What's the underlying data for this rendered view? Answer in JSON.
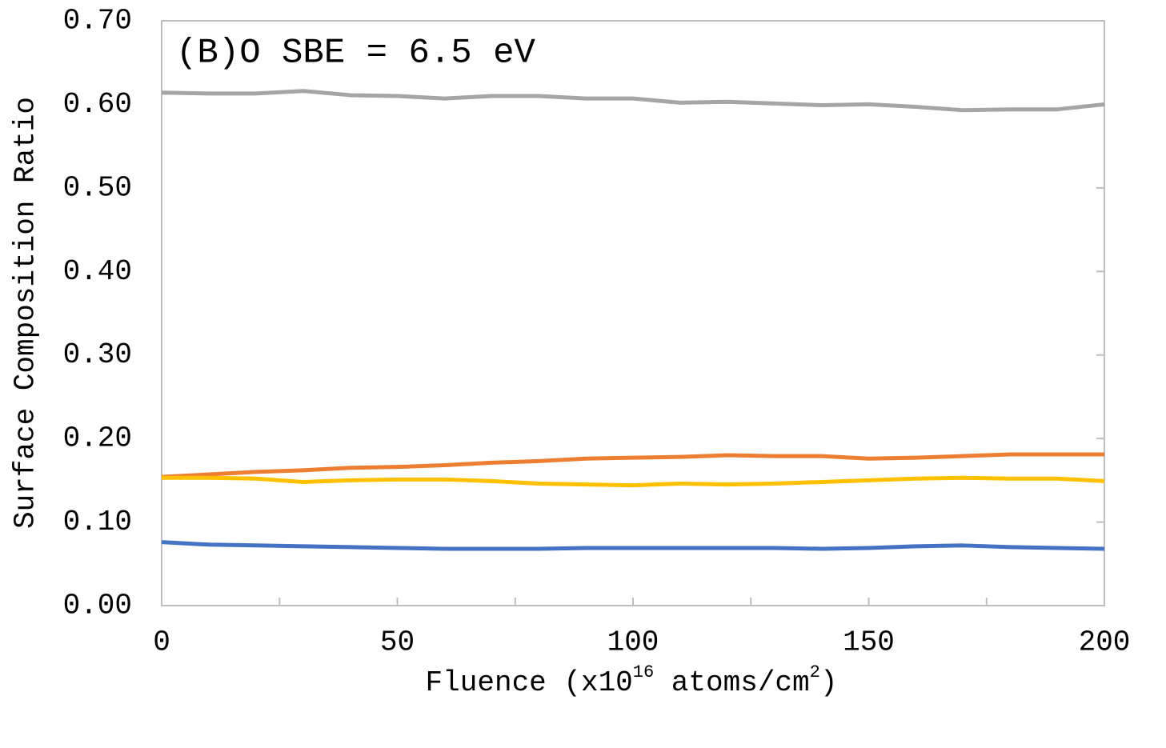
{
  "chart_data": {
    "type": "line",
    "annotation": "(B)O SBE = 6.5 eV",
    "xlabel": [
      {
        "text": "Fluence (x10"
      },
      {
        "text": "16",
        "sup": true
      },
      {
        "text": " atoms/cm"
      },
      {
        "text": "2",
        "sup": true
      },
      {
        "text": ")"
      }
    ],
    "ylabel": "Surface Composition Ratio",
    "x": [
      0,
      10,
      20,
      30,
      40,
      50,
      60,
      70,
      80,
      90,
      100,
      110,
      120,
      130,
      140,
      150,
      160,
      170,
      180,
      190,
      200
    ],
    "series": [
      {
        "color": "#a5a5a5",
        "values": [
          0.614,
          0.613,
          0.613,
          0.616,
          0.611,
          0.61,
          0.607,
          0.61,
          0.61,
          0.607,
          0.607,
          0.602,
          0.603,
          0.601,
          0.599,
          0.6,
          0.597,
          0.593,
          0.594,
          0.594,
          0.6
        ]
      },
      {
        "color": "#ed7d31",
        "values": [
          0.154,
          0.157,
          0.16,
          0.162,
          0.165,
          0.166,
          0.168,
          0.171,
          0.173,
          0.176,
          0.177,
          0.178,
          0.18,
          0.179,
          0.179,
          0.176,
          0.177,
          0.179,
          0.181,
          0.181,
          0.181
        ]
      },
      {
        "color": "#ffc000",
        "values": [
          0.153,
          0.153,
          0.152,
          0.148,
          0.15,
          0.151,
          0.151,
          0.149,
          0.146,
          0.145,
          0.144,
          0.146,
          0.145,
          0.146,
          0.148,
          0.15,
          0.152,
          0.153,
          0.152,
          0.152,
          0.149
        ]
      },
      {
        "color": "#4472c4",
        "values": [
          0.076,
          0.073,
          0.072,
          0.071,
          0.07,
          0.069,
          0.068,
          0.068,
          0.068,
          0.069,
          0.069,
          0.069,
          0.069,
          0.069,
          0.068,
          0.069,
          0.071,
          0.072,
          0.07,
          0.069,
          0.068
        ]
      }
    ],
    "xlim": [
      0,
      200
    ],
    "xticks": [
      0,
      50,
      100,
      150,
      200
    ],
    "xminorticks": [
      25,
      75,
      125,
      175
    ],
    "ylim": [
      0,
      0.7
    ],
    "yticks": [
      {
        "value": 0,
        "label": "0.00"
      },
      {
        "value": 0.1,
        "label": "0.10"
      },
      {
        "value": 0.2,
        "label": "0.20"
      },
      {
        "value": 0.3,
        "label": "0.30"
      },
      {
        "value": 0.4,
        "label": "0.40"
      },
      {
        "value": 0.5,
        "label": "0.50"
      },
      {
        "value": 0.6,
        "label": "0.60"
      },
      {
        "value": 0.7,
        "label": "0.70"
      }
    ],
    "grid": false
  }
}
